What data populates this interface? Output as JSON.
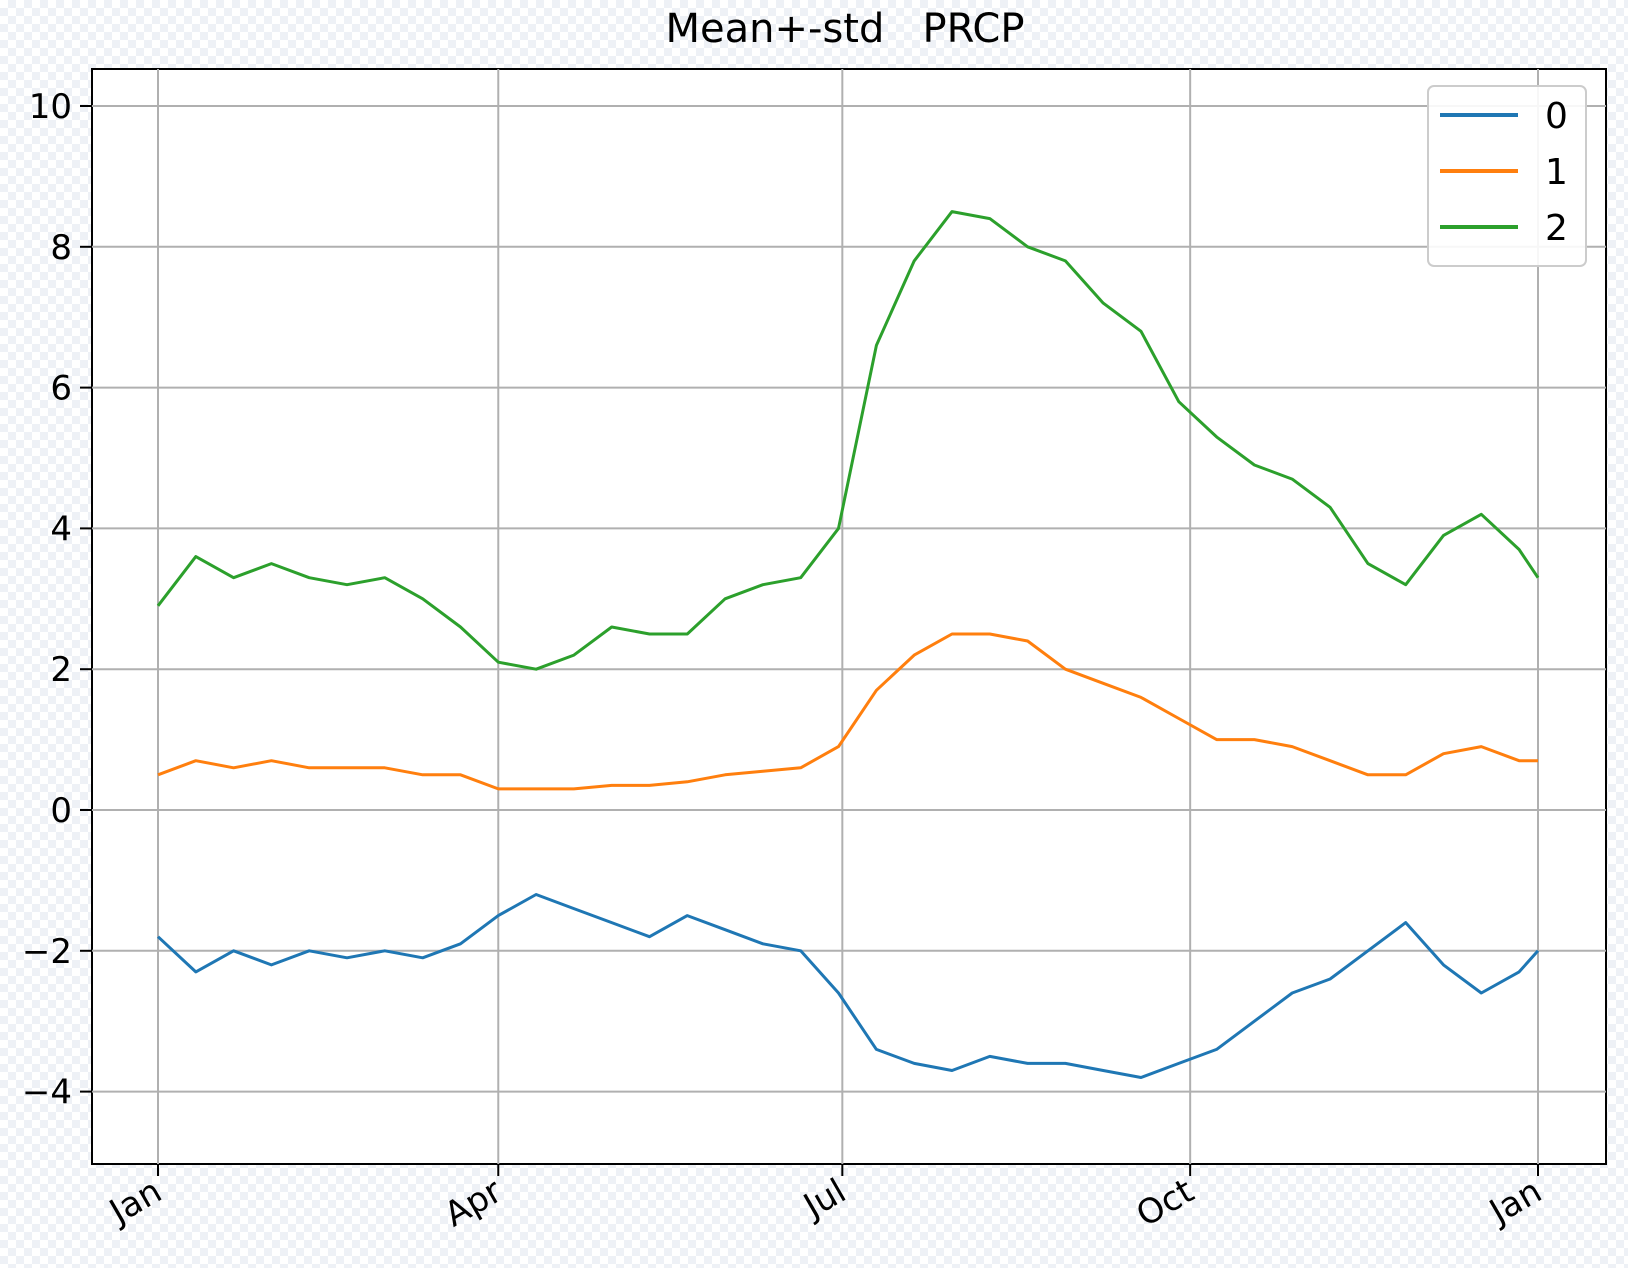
{
  "chart_data": {
    "type": "line",
    "title": "Mean+-std   PRCP",
    "xlabel": "",
    "ylabel": "",
    "x_ticks": [
      "Jan",
      "Apr",
      "Jul",
      "Oct",
      "Jan"
    ],
    "y_ticks": [
      "10",
      "8",
      "6",
      "4",
      "2",
      "0",
      "−2",
      "−4"
    ],
    "ylim": [
      -5,
      10.5
    ],
    "grid": true,
    "legend_position": "top-right",
    "x_days": [
      0,
      10,
      20,
      30,
      40,
      50,
      60,
      70,
      80,
      90,
      100,
      110,
      120,
      130,
      140,
      150,
      160,
      170,
      180,
      190,
      200,
      210,
      220,
      230,
      240,
      250,
      260,
      270,
      280,
      290,
      300,
      310,
      320,
      330,
      340,
      350,
      360,
      365
    ],
    "series": [
      {
        "name": "0",
        "color": "#1f77b4",
        "values": [
          -1.8,
          -2.3,
          -2.0,
          -2.2,
          -2.0,
          -2.1,
          -2.0,
          -2.1,
          -1.9,
          -1.5,
          -1.2,
          -1.4,
          -1.6,
          -1.8,
          -1.5,
          -1.7,
          -1.9,
          -2.0,
          -2.6,
          -3.4,
          -3.6,
          -3.7,
          -3.5,
          -3.6,
          -3.6,
          -3.7,
          -3.8,
          -3.6,
          -3.4,
          -3.0,
          -2.6,
          -2.4,
          -2.0,
          -1.6,
          -2.2,
          -2.6,
          -2.3,
          -2.0
        ]
      },
      {
        "name": "1",
        "color": "#ff7f0e",
        "values": [
          0.5,
          0.7,
          0.6,
          0.7,
          0.6,
          0.6,
          0.6,
          0.5,
          0.5,
          0.3,
          0.3,
          0.3,
          0.35,
          0.35,
          0.4,
          0.5,
          0.55,
          0.6,
          0.9,
          1.7,
          2.2,
          2.5,
          2.5,
          2.4,
          2.0,
          1.8,
          1.6,
          1.3,
          1.0,
          1.0,
          0.9,
          0.7,
          0.5,
          0.5,
          0.8,
          0.9,
          0.7,
          0.7
        ]
      },
      {
        "name": "2",
        "color": "#2ca02c",
        "values": [
          2.9,
          3.6,
          3.3,
          3.5,
          3.3,
          3.2,
          3.3,
          3.0,
          2.6,
          2.1,
          2.0,
          2.2,
          2.6,
          2.5,
          2.5,
          3.0,
          3.2,
          3.3,
          4.0,
          6.6,
          7.8,
          8.5,
          8.4,
          8.0,
          7.8,
          7.2,
          6.8,
          5.8,
          5.3,
          4.9,
          4.7,
          4.3,
          3.5,
          3.2,
          3.9,
          4.2,
          3.7,
          3.3
        ]
      }
    ]
  }
}
